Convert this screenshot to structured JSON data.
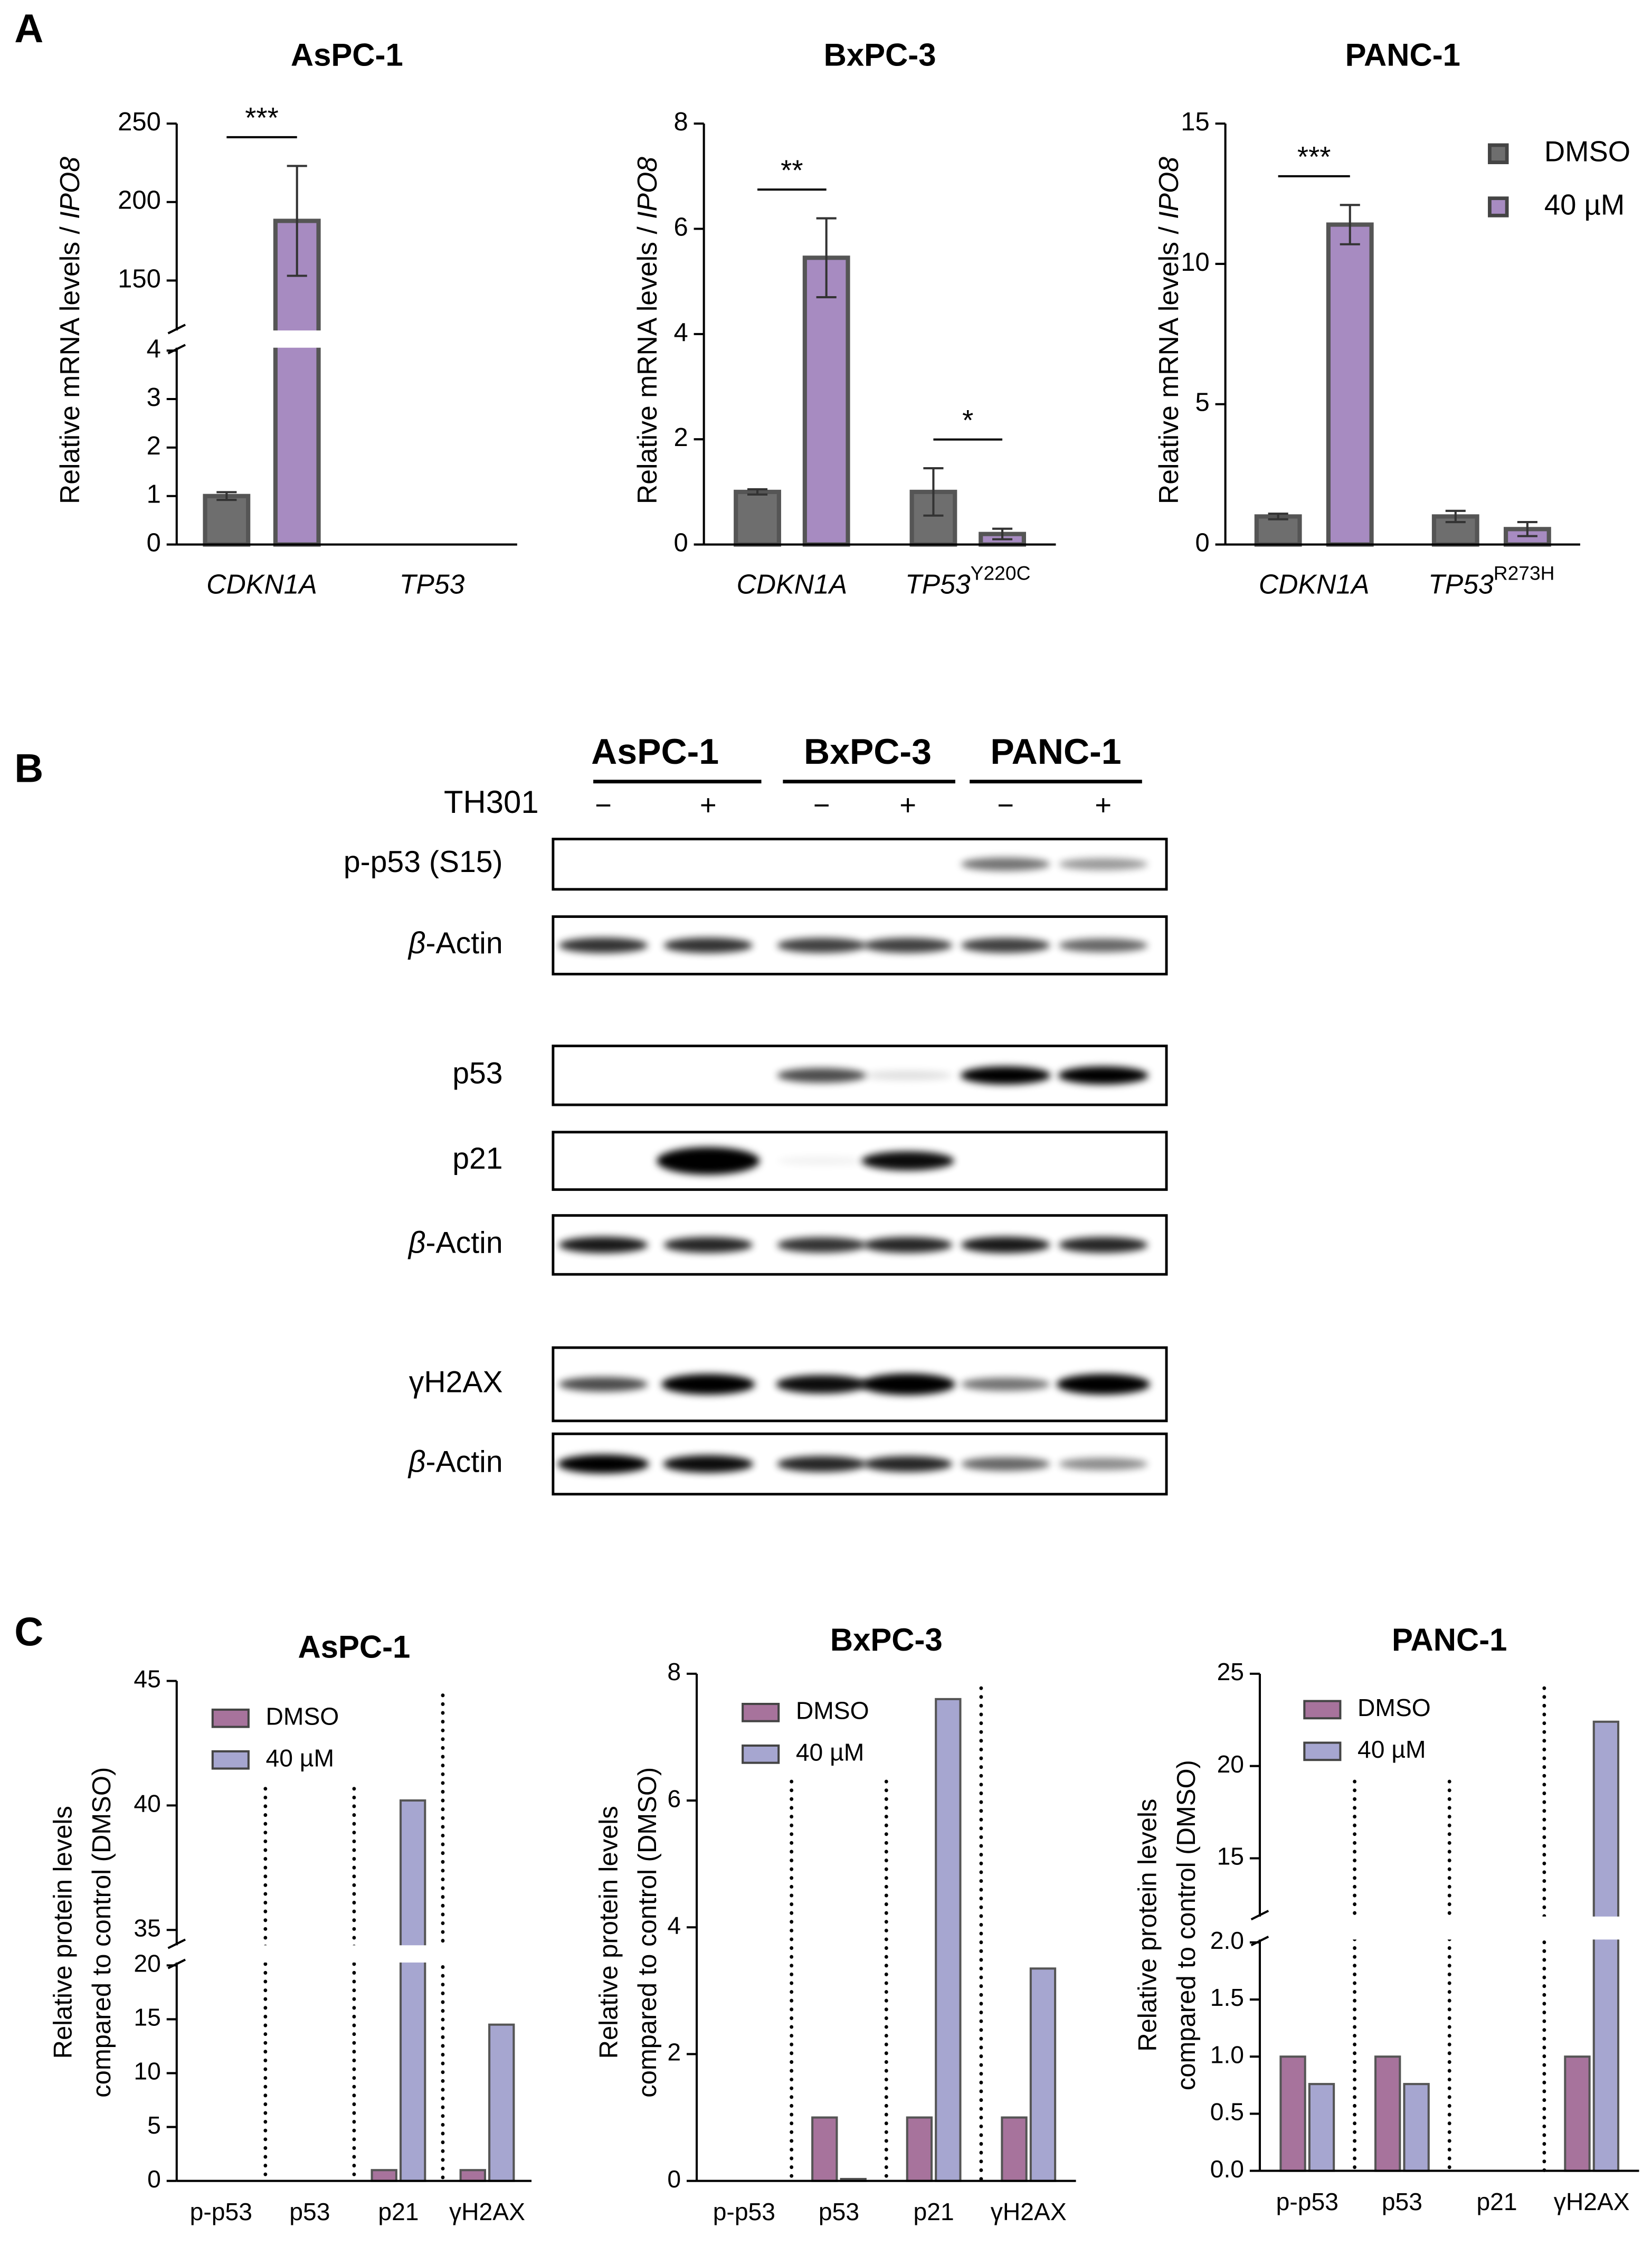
{
  "panel_labels": [
    "A",
    "B",
    "C"
  ],
  "chart_data": [
    {
      "type": "bar",
      "title": "AsPC-1",
      "ylabel": [
        "Relative mRNA levels / ",
        "IPO8"
      ],
      "categories": [
        [
          "CDKN1A"
        ],
        [
          "TP53"
        ]
      ],
      "categories_italic": true,
      "series": [
        {
          "color": "#6e6e6e",
          "values": [
            1.0,
            null
          ],
          "errors": [
            0.08,
            null
          ]
        },
        {
          "color": "#a78bc1",
          "values": [
            188,
            null
          ],
          "errors": [
            35,
            null
          ]
        }
      ],
      "ylim": [
        0,
        250
      ],
      "ybreak": [
        4,
        120
      ],
      "yticks": [
        0,
        1,
        2,
        3,
        4,
        150,
        200,
        250
      ],
      "annotations": [
        {
          "text": "***",
          "category": 0
        }
      ]
    },
    {
      "type": "bar",
      "title": "BxPC-3",
      "ylabel": [
        "Relative mRNA levels / ",
        "IPO8"
      ],
      "categories": [
        [
          "CDKN1A"
        ],
        [
          "TP53",
          "Y220C"
        ]
      ],
      "categories_italic": true,
      "series": [
        {
          "color": "#6e6e6e",
          "values": [
            1.0,
            1.0
          ],
          "errors": [
            0.05,
            0.45
          ]
        },
        {
          "color": "#a78bc1",
          "values": [
            5.45,
            0.2
          ],
          "errors": [
            0.75,
            0.1
          ]
        }
      ],
      "ylim": [
        0,
        8
      ],
      "yticks": [
        0,
        2,
        4,
        6,
        8
      ],
      "annotations": [
        {
          "text": "**",
          "category": 0
        },
        {
          "text": "*",
          "category": 1
        }
      ]
    },
    {
      "type": "bar",
      "title": "PANC-1",
      "ylabel": [
        "Relative mRNA levels / ",
        "IPO8"
      ],
      "categories": [
        [
          "CDKN1A"
        ],
        [
          "TP53",
          "R273H"
        ]
      ],
      "categories_italic": true,
      "series": [
        {
          "name": "DMSO",
          "color": "#6e6e6e",
          "values": [
            1.0,
            1.0
          ],
          "errors": [
            0.1,
            0.2
          ]
        },
        {
          "name": "40 µM",
          "color": "#a78bc1",
          "values": [
            11.4,
            0.55
          ],
          "errors": [
            0.7,
            0.25
          ]
        }
      ],
      "ylim": [
        0,
        15
      ],
      "yticks": [
        0,
        5,
        10,
        15
      ],
      "legend": "upper right",
      "annotations": [
        {
          "text": "***",
          "category": 0
        }
      ]
    },
    {
      "type": "bar",
      "title": "AsPC-1",
      "ylabel": [
        "Relative protein levels",
        "compared to control (DMSO)"
      ],
      "categories": [
        [
          "p-p53"
        ],
        [
          "p53"
        ],
        [
          "p21"
        ],
        [
          "γH2AX"
        ]
      ],
      "separators": true,
      "series": [
        {
          "name": "DMSO",
          "color": "#a7739c",
          "values": [
            null,
            null,
            1,
            1
          ]
        },
        {
          "name": "40 µM",
          "color": "#a6a6d0",
          "values": [
            null,
            null,
            40.2,
            14.5
          ]
        }
      ],
      "ylim": [
        0,
        45
      ],
      "ybreak": [
        20,
        34.5
      ],
      "yticks": [
        0,
        5,
        10,
        15,
        20,
        35,
        40,
        45
      ],
      "legend": "upper left"
    },
    {
      "type": "bar",
      "title": "BxPC-3",
      "ylabel": [
        "Relative protein levels",
        "compared to control (DMSO)"
      ],
      "categories": [
        [
          "p-p53"
        ],
        [
          "p53"
        ],
        [
          "p21"
        ],
        [
          "γH2AX"
        ]
      ],
      "separators": true,
      "series": [
        {
          "name": "DMSO",
          "color": "#a7739c",
          "values": [
            null,
            1,
            1,
            1
          ]
        },
        {
          "name": "40 µM",
          "color": "#a6a6d0",
          "values": [
            null,
            0.03,
            7.6,
            3.35
          ]
        }
      ],
      "ylim": [
        0,
        8
      ],
      "yticks": [
        0,
        2,
        4,
        6,
        8
      ],
      "legend": "upper left"
    },
    {
      "type": "bar",
      "title": "PANC-1",
      "ylabel": [
        "Relative protein levels",
        "compared to control (DMSO)"
      ],
      "categories": [
        [
          "p-p53"
        ],
        [
          "p53"
        ],
        [
          "p21"
        ],
        [
          "γH2AX"
        ]
      ],
      "separators": true,
      "series": [
        {
          "name": "DMSO",
          "color": "#a7739c",
          "values": [
            1,
            1,
            null,
            1
          ]
        },
        {
          "name": "40 µM",
          "color": "#a6a6d0",
          "values": [
            0.76,
            0.76,
            null,
            22.4
          ]
        }
      ],
      "ylim": [
        0,
        25
      ],
      "ybreak": [
        2,
        12
      ],
      "yticks": [
        {
          "value": 0,
          "label": "0.0"
        },
        {
          "value": 0.5,
          "label": "0.5"
        },
        {
          "value": 1,
          "label": "1.0"
        },
        {
          "value": 1.5,
          "label": "1.5"
        },
        {
          "value": 2,
          "label": "2.0"
        },
        15,
        20,
        25
      ],
      "legend": "upper left"
    }
  ],
  "blot": {
    "cell_lines": [
      "AsPC-1",
      "BxPC-3",
      "PANC-1"
    ],
    "treatment": "TH301",
    "signs": [
      "−",
      "+",
      "−",
      "+",
      "−",
      "+"
    ],
    "rows": [
      {
        "label": [
          "p-p53 (S15)"
        ],
        "italic": [
          false
        ]
      },
      {
        "label": [
          "β",
          "-Actin"
        ],
        "italic": [
          true,
          false
        ]
      },
      {
        "label": [
          "p53"
        ],
        "italic": [
          false
        ]
      },
      {
        "label": [
          "p21"
        ],
        "italic": [
          false
        ]
      },
      {
        "label": [
          "β",
          "-Actin"
        ],
        "italic": [
          true,
          false
        ]
      },
      {
        "label": [
          "γH2AX"
        ],
        "italic": [
          false
        ]
      },
      {
        "label": [
          "β",
          "-Actin"
        ],
        "italic": [
          true,
          false
        ]
      }
    ]
  }
}
